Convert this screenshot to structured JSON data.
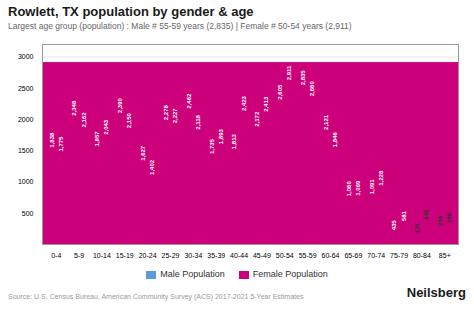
{
  "chart_data": {
    "type": "bar",
    "title": "Rowlett, TX population by gender & age",
    "subtitle": "Largest age group (population) : Male # 55-59 years (2,835) | Female # 50-54 years (2,911)",
    "categories": [
      "0-4",
      "5-9",
      "10-14",
      "15-19",
      "20-24",
      "25-29",
      "30-34",
      "35-39",
      "40-44",
      "45-49",
      "50-54",
      "55-59",
      "60-64",
      "65-69",
      "70-74",
      "75-79",
      "80-84",
      "85+"
    ],
    "series": [
      {
        "name": "Male Population",
        "color": "#5b9bd5",
        "values": [
          1838,
          2348,
          1857,
          2390,
          1627,
          2278,
          2462,
          1735,
          1813,
          2172,
          2605,
          2835,
          2121,
          1060,
          1091,
          435,
          130,
          248
        ],
        "value_labels": [
          "1,838",
          "2,348",
          "1,857",
          "2,390",
          "1,627",
          "2,278",
          "2,462",
          "1,735",
          "1,813",
          "2,172",
          "2,605",
          "2,835",
          "2,121",
          "1,060",
          "1,091",
          "435",
          "130",
          "248"
        ]
      },
      {
        "name": "Female Population",
        "color": "#cc007a",
        "values": [
          1775,
          2162,
          2043,
          2150,
          1402,
          2227,
          2118,
          1893,
          2423,
          2413,
          2911,
          2660,
          1846,
          1069,
          1228,
          581,
          349,
          298
        ],
        "value_labels": [
          "1,775",
          "2,162",
          "2,043",
          "2,150",
          "1,402",
          "2,227",
          "2,118",
          "1,893",
          "2,423",
          "2,413",
          "2,911",
          "2,660",
          "1,846",
          "1,069",
          "1,228",
          "581",
          "349",
          "298"
        ]
      }
    ],
    "ylim": [
      0,
      3200
    ],
    "yticks": [
      500,
      1000,
      1500,
      2000,
      2500,
      3000
    ],
    "grid": true,
    "legend": "bottom",
    "data_labels": true,
    "annotations": [
      "Source: U.S. Census Bureau, American Community Survey (ACS) 2017-2021 5-Year Estimates",
      "Neilsberg"
    ]
  }
}
